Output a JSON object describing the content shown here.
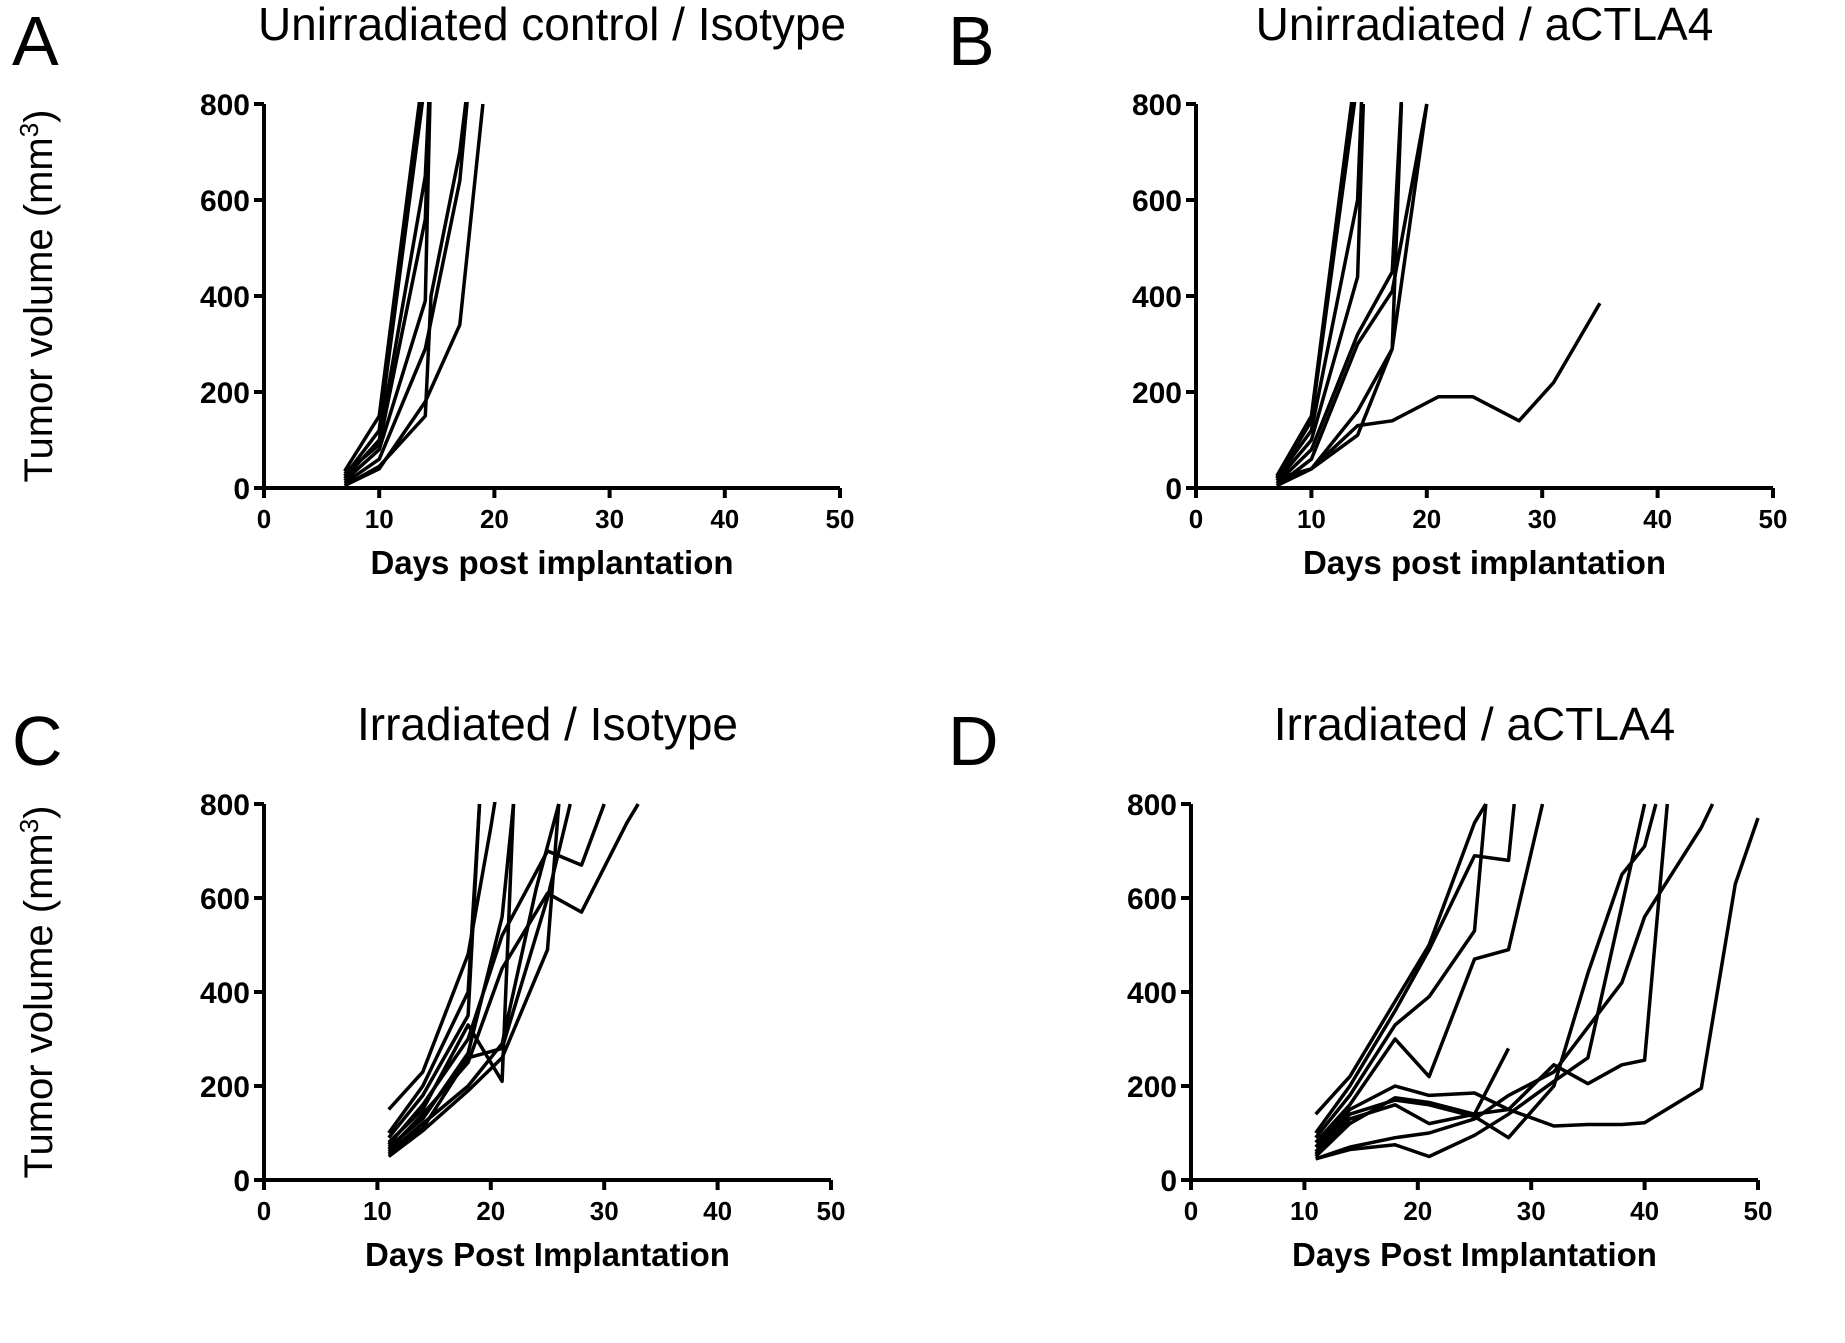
{
  "chart_data": [
    {
      "panel": "A",
      "type": "line",
      "title": "Unirradiated control / Isotype",
      "xlabel": "Days post implantation",
      "ylabel": "Tumor volume (mm3)",
      "xlim": [
        0,
        50
      ],
      "ylim": [
        0,
        800
      ],
      "xticks": [
        0,
        10,
        20,
        30,
        40,
        50
      ],
      "yticks": [
        0,
        200,
        400,
        600,
        800
      ],
      "series": [
        {
          "points": [
            [
              7,
              35
            ],
            [
              10,
              150
            ],
            [
              14,
              900
            ]
          ]
        },
        {
          "points": [
            [
              7,
              25
            ],
            [
              10,
              120
            ],
            [
              14,
              850
            ]
          ]
        },
        {
          "points": [
            [
              7,
              20
            ],
            [
              10,
              100
            ],
            [
              14,
              650
            ],
            [
              14.5,
              900
            ]
          ]
        },
        {
          "points": [
            [
              7,
              30
            ],
            [
              10,
              90
            ],
            [
              14,
              560
            ],
            [
              14.5,
              900
            ]
          ]
        },
        {
          "points": [
            [
              7,
              15
            ],
            [
              10,
              80
            ],
            [
              14,
              390
            ],
            [
              14.5,
              900
            ]
          ]
        },
        {
          "points": [
            [
              7,
              10
            ],
            [
              10,
              60
            ],
            [
              14,
              290
            ],
            [
              17,
              640
            ],
            [
              18,
              900
            ]
          ]
        },
        {
          "points": [
            [
              7,
              5
            ],
            [
              10,
              45
            ],
            [
              14,
              150
            ],
            [
              14.5,
              400
            ],
            [
              17,
              700
            ],
            [
              18,
              900
            ]
          ]
        },
        {
          "points": [
            [
              7,
              5
            ],
            [
              10,
              40
            ],
            [
              14,
              180
            ],
            [
              17,
              340
            ],
            [
              19,
              800
            ]
          ]
        }
      ]
    },
    {
      "panel": "B",
      "type": "line",
      "title": "Unirradiated / aCTLA4",
      "xlabel": "Days post implantation",
      "ylabel": "",
      "xlim": [
        0,
        50
      ],
      "ylim": [
        0,
        800
      ],
      "xticks": [
        0,
        10,
        20,
        30,
        40,
        50
      ],
      "yticks": [
        0,
        200,
        400,
        600,
        800
      ],
      "series": [
        {
          "points": [
            [
              7,
              25
            ],
            [
              10,
              150
            ],
            [
              14,
              900
            ]
          ]
        },
        {
          "points": [
            [
              7,
              20
            ],
            [
              10,
              140
            ],
            [
              14,
              850
            ]
          ]
        },
        {
          "points": [
            [
              7,
              20
            ],
            [
              10,
              120
            ],
            [
              14,
              600
            ],
            [
              14.5,
              900
            ]
          ]
        },
        {
          "points": [
            [
              7,
              15
            ],
            [
              10,
              100
            ],
            [
              14,
              440
            ],
            [
              14.5,
              800
            ]
          ]
        },
        {
          "points": [
            [
              7,
              10
            ],
            [
              10,
              80
            ],
            [
              14,
              320
            ],
            [
              17,
              450
            ],
            [
              18,
              900
            ]
          ]
        },
        {
          "points": [
            [
              7,
              5
            ],
            [
              10,
              60
            ],
            [
              14,
              300
            ],
            [
              17,
              410
            ],
            [
              20,
              800
            ]
          ]
        },
        {
          "points": [
            [
              7,
              5
            ],
            [
              10,
              40
            ],
            [
              14,
              160
            ],
            [
              17,
              290
            ],
            [
              20,
              800
            ]
          ]
        },
        {
          "points": [
            [
              7,
              5
            ],
            [
              10,
              40
            ],
            [
              14,
              110
            ],
            [
              17,
              290
            ],
            [
              17.8,
              800
            ]
          ]
        },
        {
          "points": [
            [
              7,
              20
            ],
            [
              10,
              40
            ],
            [
              14,
              130
            ],
            [
              17,
              140
            ],
            [
              21,
              190
            ],
            [
              24,
              190
            ],
            [
              28,
              140
            ],
            [
              31,
              220
            ],
            [
              35,
              385
            ]
          ]
        }
      ]
    },
    {
      "panel": "C",
      "type": "line",
      "title": "Irradiated / Isotype",
      "xlabel": "Days Post Implantation",
      "ylabel": "Tumor volume (mm3)",
      "xlim": [
        0,
        50
      ],
      "ylim": [
        0,
        800
      ],
      "xticks": [
        0,
        10,
        20,
        30,
        40,
        50
      ],
      "yticks": [
        0,
        200,
        400,
        600,
        800
      ],
      "series": [
        {
          "points": [
            [
              11,
              150
            ],
            [
              14,
              230
            ],
            [
              18,
              480
            ],
            [
              20,
              750
            ],
            [
              21,
              900
            ]
          ]
        },
        {
          "points": [
            [
              11,
              100
            ],
            [
              14,
              200
            ],
            [
              18,
              400
            ],
            [
              19,
              800
            ]
          ]
        },
        {
          "points": [
            [
              11,
              90
            ],
            [
              14,
              180
            ],
            [
              18,
              350
            ],
            [
              19,
              800
            ]
          ]
        },
        {
          "points": [
            [
              11,
              80
            ],
            [
              14,
              150
            ],
            [
              18,
              330
            ],
            [
              21,
              210
            ],
            [
              22,
              800
            ]
          ]
        },
        {
          "points": [
            [
              11,
              70
            ],
            [
              14,
              130
            ],
            [
              18,
              270
            ],
            [
              21,
              560
            ],
            [
              22,
              800
            ]
          ]
        },
        {
          "points": [
            [
              11,
              60
            ],
            [
              14,
              120
            ],
            [
              18,
              200
            ],
            [
              21,
              290
            ],
            [
              24,
              620
            ],
            [
              26,
              800
            ]
          ]
        },
        {
          "points": [
            [
              11,
              55
            ],
            [
              14,
              110
            ],
            [
              18,
              260
            ],
            [
              21,
              280
            ],
            [
              25,
              600
            ],
            [
              27,
              800
            ]
          ]
        },
        {
          "points": [
            [
              11,
              50
            ],
            [
              14,
              105
            ],
            [
              18,
              190
            ],
            [
              21,
              260
            ],
            [
              25,
              490
            ],
            [
              26,
              800
            ]
          ]
        },
        {
          "points": [
            [
              11,
              65
            ],
            [
              14,
              140
            ],
            [
              18,
              250
            ],
            [
              21,
              450
            ],
            [
              25,
              610
            ],
            [
              28,
              570
            ],
            [
              32,
              760
            ],
            [
              33,
              800
            ]
          ]
        },
        {
          "points": [
            [
              11,
              75
            ],
            [
              14,
              160
            ],
            [
              18,
              300
            ],
            [
              21,
              520
            ],
            [
              25,
              700
            ],
            [
              28,
              670
            ],
            [
              30,
              800
            ]
          ]
        }
      ]
    },
    {
      "panel": "D",
      "type": "line",
      "title": "Irradiated / aCTLA4",
      "xlabel": "Days Post Implantation",
      "ylabel": "",
      "xlim": [
        0,
        50
      ],
      "ylim": [
        0,
        800
      ],
      "xticks": [
        0,
        10,
        20,
        30,
        40,
        50
      ],
      "yticks": [
        0,
        200,
        400,
        600,
        800
      ],
      "series": [
        {
          "points": [
            [
              11,
              140
            ],
            [
              14,
              220
            ],
            [
              18,
              380
            ],
            [
              21,
              500
            ],
            [
              25,
              760
            ],
            [
              26,
              800
            ]
          ]
        },
        {
          "points": [
            [
              11,
              100
            ],
            [
              14,
              200
            ],
            [
              18,
              360
            ],
            [
              21,
              490
            ],
            [
              25,
              690
            ],
            [
              28,
              680
            ],
            [
              28.5,
              800
            ]
          ]
        },
        {
          "points": [
            [
              11,
              90
            ],
            [
              14,
              180
            ],
            [
              18,
              330
            ],
            [
              21,
              390
            ],
            [
              25,
              530
            ],
            [
              26,
              800
            ]
          ]
        },
        {
          "points": [
            [
              11,
              80
            ],
            [
              14,
              160
            ],
            [
              18,
              300
            ],
            [
              21,
              220
            ],
            [
              25,
              470
            ],
            [
              28,
              490
            ],
            [
              31,
              800
            ]
          ]
        },
        {
          "points": [
            [
              11,
              70
            ],
            [
              14,
              150
            ],
            [
              18,
              200
            ],
            [
              21,
              180
            ],
            [
              25,
              185
            ],
            [
              28,
              150
            ],
            [
              32,
              245
            ],
            [
              35,
              205
            ],
            [
              38,
              245
            ],
            [
              40,
              255
            ],
            [
              42,
              800
            ]
          ]
        },
        {
          "points": [
            [
              11,
              60
            ],
            [
              14,
              140
            ],
            [
              18,
              170
            ],
            [
              21,
              160
            ],
            [
              25,
              135
            ],
            [
              28,
              90
            ],
            [
              32,
              200
            ],
            [
              35,
              440
            ],
            [
              38,
              650
            ],
            [
              40,
              710
            ],
            [
              41,
              800
            ]
          ]
        },
        {
          "points": [
            [
              11,
              55
            ],
            [
              14,
              130
            ],
            [
              18,
              160
            ],
            [
              21,
              120
            ],
            [
              25,
              140
            ],
            [
              28,
              280
            ]
          ]
        },
        {
          "points": [
            [
              11,
              50
            ],
            [
              14,
              120
            ],
            [
              18,
              175
            ],
            [
              21,
              165
            ],
            [
              25,
              140
            ],
            [
              28,
              150
            ],
            [
              32,
              115
            ],
            [
              35,
              118
            ],
            [
              38,
              118
            ],
            [
              40,
              122
            ],
            [
              45,
              195
            ],
            [
              48,
              630
            ],
            [
              50,
              770
            ]
          ]
        },
        {
          "points": [
            [
              11,
              45
            ],
            [
              14,
              70
            ],
            [
              18,
              90
            ],
            [
              21,
              100
            ],
            [
              25,
              130
            ],
            [
              28,
              180
            ],
            [
              32,
              230
            ],
            [
              38,
              420
            ],
            [
              40,
              560
            ],
            [
              45,
              750
            ],
            [
              46,
              800
            ]
          ]
        },
        {
          "points": [
            [
              11,
              45
            ],
            [
              14,
              65
            ],
            [
              18,
              75
            ],
            [
              21,
              50
            ],
            [
              25,
              95
            ],
            [
              28,
              140
            ],
            [
              32,
              210
            ],
            [
              35,
              260
            ],
            [
              40,
              800
            ]
          ]
        }
      ]
    }
  ]
}
